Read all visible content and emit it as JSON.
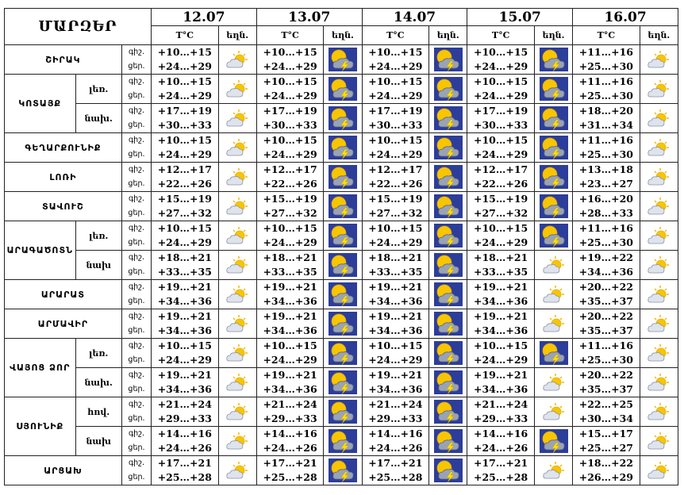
{
  "header": {
    "region_title": "ՄԱՐԶԵՐ",
    "temp_label": "T°C",
    "weather_label": "եղն.",
    "dates": [
      "12.07",
      "13.07",
      "14.07",
      "15.07",
      "16.07"
    ]
  },
  "time_of_day": {
    "night": "գիշ.",
    "day": "ցեր."
  },
  "rows": [
    {
      "region": "ՇԻՐԱԿ",
      "sub": "",
      "span": 1,
      "tod": [
        "գիշ.",
        "ցեր."
      ],
      "temps": [
        [
          "+10…+15",
          "+24…+29"
        ],
        [
          "+10…+15",
          "+24…+29"
        ],
        [
          "+10…+15",
          "+24…+29"
        ],
        [
          "+10…+15",
          "+24…+29"
        ],
        [
          "+11…+16",
          "+25…+30"
        ]
      ],
      "icons": [
        "sun-cloud",
        "storm",
        "storm",
        "storm",
        "sun-cloud"
      ]
    },
    {
      "region": "ԿՈՏԱՅՔ",
      "sub": "լեռ.",
      "span": 2,
      "tod": [
        "գիշ.",
        "ցեր."
      ],
      "temps": [
        [
          "+10…+15",
          "+24…+29"
        ],
        [
          "+10…+15",
          "+24…+29"
        ],
        [
          "+10…+15",
          "+24…+29"
        ],
        [
          "+10…+15",
          "+24…+29"
        ],
        [
          "+11…+16",
          "+25…+30"
        ]
      ],
      "icons": [
        "sun-cloud",
        "storm",
        "storm",
        "storm",
        "sun-cloud"
      ]
    },
    {
      "region": "",
      "sub": "նախ.",
      "span": 0,
      "tod": [
        "գիշ.",
        "ցեր."
      ],
      "temps": [
        [
          "+17…+19",
          "+30…+33"
        ],
        [
          "+17…+19",
          "+30…+33"
        ],
        [
          "+17…+19",
          "+30…+33"
        ],
        [
          "+17…+19",
          "+30…+33"
        ],
        [
          "+18…+20",
          "+31…+34"
        ]
      ],
      "icons": [
        "sun-cloud",
        "storm",
        "storm",
        "storm",
        "sun-cloud"
      ]
    },
    {
      "region": "ԳԵՂԱՐՔՈՒՆԻՔ",
      "sub": "",
      "span": 1,
      "tod": [
        "գիշ.",
        "ցեր."
      ],
      "temps": [
        [
          "+10…+15",
          "+24…+29"
        ],
        [
          "+10…+15",
          "+24…+29"
        ],
        [
          "+10…+15",
          "+24…+29"
        ],
        [
          "+10…+15",
          "+24…+29"
        ],
        [
          "+11…+16",
          "+25…+30"
        ]
      ],
      "icons": [
        "sun-cloud",
        "storm",
        "storm",
        "storm",
        "sun-cloud"
      ]
    },
    {
      "region": "ԼՈՌԻ",
      "sub": "",
      "span": 1,
      "tod": [
        "գիշ.",
        "ցեր."
      ],
      "temps": [
        [
          "+12…+17",
          "+22…+26"
        ],
        [
          "+12…+17",
          "+22…+26"
        ],
        [
          "+12…+17",
          "+22…+26"
        ],
        [
          "+12…+17",
          "+22…+26"
        ],
        [
          "+13…+18",
          "+23…+27"
        ]
      ],
      "icons": [
        "sun-cloud",
        "storm",
        "storm",
        "storm",
        "sun-cloud"
      ]
    },
    {
      "region": "ՏԱՎՈՒՇ",
      "sub": "",
      "span": 1,
      "tod": [
        "գիշ.",
        "ցեր."
      ],
      "temps": [
        [
          "+15…+19",
          "+27…+32"
        ],
        [
          "+15…+19",
          "+27…+32"
        ],
        [
          "+15…+19",
          "+27…+32"
        ],
        [
          "+15…+19",
          "+27…+32"
        ],
        [
          "+16…+20",
          "+28…+33"
        ]
      ],
      "icons": [
        "sun-cloud",
        "storm",
        "storm",
        "storm",
        "sun-cloud"
      ]
    },
    {
      "region": "ԱՐԱԳԱԾՈՏՆ",
      "sub": "լեռ.",
      "span": 2,
      "tod": [
        "գիշ.",
        "ցեր."
      ],
      "temps": [
        [
          "+10…+15",
          "+24…+29"
        ],
        [
          "+10…+15",
          "+24…+29"
        ],
        [
          "+10…+15",
          "+24…+29"
        ],
        [
          "+10…+15",
          "+24…+29"
        ],
        [
          "+11…+16",
          "+25…+30"
        ]
      ],
      "icons": [
        "sun-cloud",
        "storm",
        "storm",
        "storm",
        "sun-cloud"
      ]
    },
    {
      "region": "",
      "sub": "նախ",
      "span": 0,
      "tod": [
        "գիշ.",
        "ցեր."
      ],
      "temps": [
        [
          "+18…+21",
          "+33…+35"
        ],
        [
          "+18…+21",
          "+33…+35"
        ],
        [
          "+18…+21",
          "+33…+35"
        ],
        [
          "+18…+21",
          "+33…+35"
        ],
        [
          "+19…+22",
          "+34…+36"
        ]
      ],
      "icons": [
        "sun-cloud",
        "storm",
        "storm",
        "sun-cloud",
        "sun-cloud"
      ]
    },
    {
      "region": "ԱՐԱՐԱՏ",
      "sub": "",
      "span": 1,
      "tod": [
        "գիշ.",
        "ցեր."
      ],
      "temps": [
        [
          "+19…+21",
          "+34…+36"
        ],
        [
          "+19…+21",
          "+34…+36"
        ],
        [
          "+19…+21",
          "+34…+36"
        ],
        [
          "+19…+21",
          "+34…+36"
        ],
        [
          "+20…+22",
          "+35…+37"
        ]
      ],
      "icons": [
        "sun-cloud",
        "storm",
        "storm",
        "sun-cloud",
        "sun-cloud"
      ]
    },
    {
      "region": "ԱՐՄԱՎԻՐ",
      "sub": "",
      "span": 1,
      "tod": [
        "գիշ.",
        "ցեր."
      ],
      "temps": [
        [
          "+19…+21",
          "+34…+36"
        ],
        [
          "+19…+21",
          "+34…+36"
        ],
        [
          "+19…+21",
          "+34…+36"
        ],
        [
          "+19…+21",
          "+34…+36"
        ],
        [
          "+20…+22",
          "+35…+37"
        ]
      ],
      "icons": [
        "sun-cloud",
        "storm",
        "storm",
        "sun-cloud",
        "sun-cloud"
      ]
    },
    {
      "region": "ՎԱՅՈՑ ՁՈՐ",
      "sub": "լեռ.",
      "span": 2,
      "tod": [
        "գիշ.",
        "ցեր."
      ],
      "temps": [
        [
          "+10…+15",
          "+24…+29"
        ],
        [
          "+10…+15",
          "+24…+29"
        ],
        [
          "+10…+15",
          "+24…+29"
        ],
        [
          "+10…+15",
          "+24…+29"
        ],
        [
          "+11…+16",
          "+25…+30"
        ]
      ],
      "icons": [
        "sun-cloud",
        "storm",
        "storm",
        "storm",
        "sun-cloud"
      ]
    },
    {
      "region": "",
      "sub": "նախ.",
      "span": 0,
      "tod": [
        "գիշ.",
        "ցեր."
      ],
      "temps": [
        [
          "+19…+21",
          "+34…+36"
        ],
        [
          "+19…+21",
          "+34…+36"
        ],
        [
          "+19…+21",
          "+34…+36"
        ],
        [
          "+19…+21",
          "+34…+36"
        ],
        [
          "+20…+22",
          "+35…+37"
        ]
      ],
      "icons": [
        "sun-cloud",
        "storm",
        "storm",
        "sun-cloud",
        "sun-cloud"
      ]
    },
    {
      "region": "ՍՅՈՒՆԻՔ",
      "sub": "հով.",
      "span": 2,
      "tod": [
        "գիշ.",
        "ցեր."
      ],
      "temps": [
        [
          "+21…+24",
          "+29…+33"
        ],
        [
          "+21…+24",
          "+29…+33"
        ],
        [
          "+21…+24",
          "+29…+33"
        ],
        [
          "+21…+24",
          "+29…+33"
        ],
        [
          "+22…+25",
          "+30…+34"
        ]
      ],
      "icons": [
        "sun-cloud",
        "storm",
        "storm",
        "sun-cloud",
        "sun-cloud"
      ]
    },
    {
      "region": "",
      "sub": "նախ",
      "span": 0,
      "tod": [
        "գիշ.",
        "ցեր."
      ],
      "temps": [
        [
          "+14…+16",
          "+24…+26"
        ],
        [
          "+14…+16",
          "+24…+26"
        ],
        [
          "+14…+16",
          "+24…+26"
        ],
        [
          "+14…+16",
          "+24…+26"
        ],
        [
          "+15…+17",
          "+25…+27"
        ]
      ],
      "icons": [
        "sun-cloud",
        "storm",
        "storm",
        "storm",
        "sun-cloud"
      ]
    },
    {
      "region": "ԱՐՑԱԽ",
      "sub": "",
      "span": 1,
      "tod": [
        "գիշ.",
        "ցեր."
      ],
      "temps": [
        [
          "+17…+21",
          "+25…+28"
        ],
        [
          "+17…+21",
          "+25…+28"
        ],
        [
          "+17…+21",
          "+25…+28"
        ],
        [
          "+17…+21",
          "+25…+28"
        ],
        [
          "+18…+22",
          "+26…+29"
        ]
      ],
      "icons": [
        "sun-cloud",
        "storm",
        "storm",
        "sun-cloud",
        "sun-cloud"
      ]
    }
  ],
  "colors": {
    "border": "#222222",
    "storm_bg": "#2c3d9a",
    "sun": "#f5c400",
    "cloud": "#9aa3b5"
  }
}
